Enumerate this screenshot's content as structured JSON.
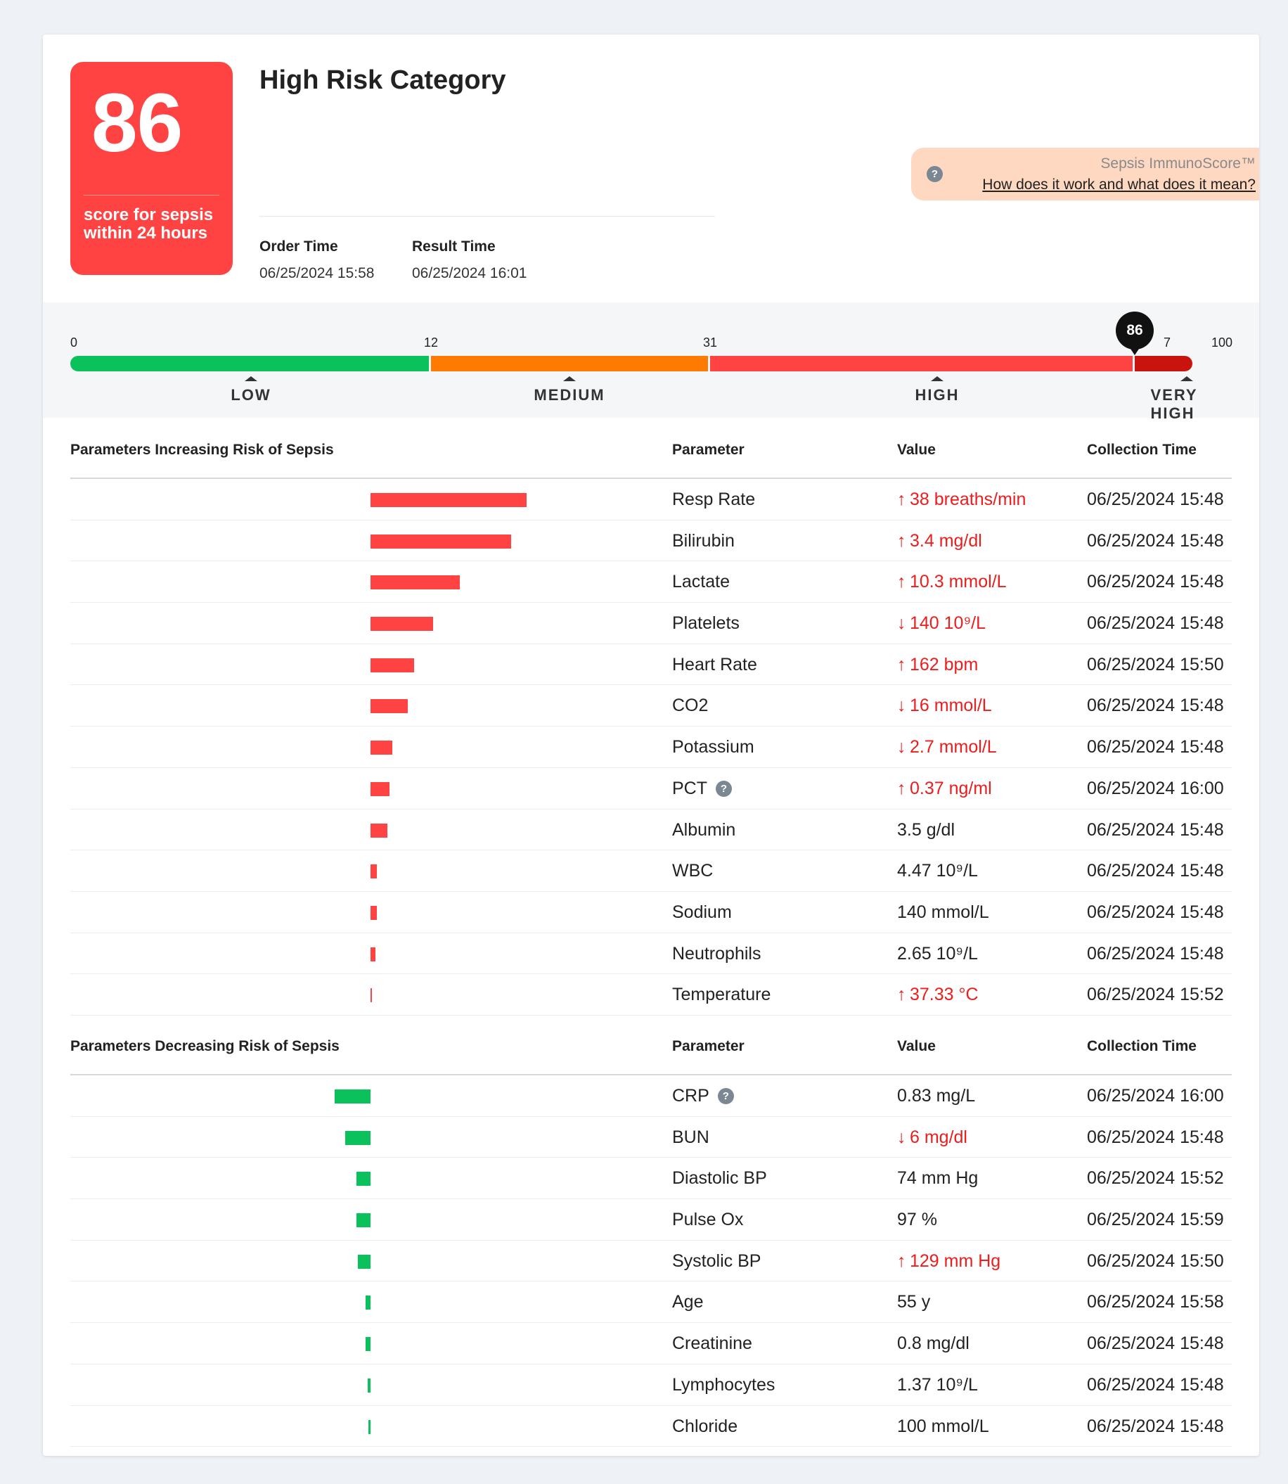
{
  "score": {
    "value": "86",
    "label": "score for sepsis within 24 hours",
    "color": "#ff4242"
  },
  "header": {
    "risk_category": "High Risk Category",
    "order_time_label": "Order Time",
    "order_time": "06/25/2024 15:58",
    "result_time_label": "Result Time",
    "result_time": "06/25/2024 16:01"
  },
  "info": {
    "title": "Sepsis ImmunoScore™",
    "link": "How does it work and what does it mean?"
  },
  "scale": {
    "ticks": [
      "0",
      "12",
      "31",
      "7",
      "100"
    ],
    "categories": [
      "LOW",
      "MEDIUM",
      "HIGH",
      "VERY HIGH"
    ],
    "marker_value": "86",
    "colors": {
      "low": "#0bc15c",
      "medium": "#ff7a00",
      "high": "#ff4242",
      "very_high": "#c9140e"
    }
  },
  "columns": {
    "parameter": "Parameter",
    "value": "Value",
    "collection_time": "Collection Time"
  },
  "increasing": {
    "title": "Parameters Increasing Risk of Sepsis",
    "bar_color": "#ff4242",
    "rows": [
      {
        "parameter": "Resp Rate",
        "value": "38 breaths/min",
        "trend": "up",
        "abnormal": true,
        "time": "06/25/2024 15:48",
        "contribution": 1.0
      },
      {
        "parameter": "Bilirubin",
        "value": "3.4 mg/dl",
        "trend": "up",
        "abnormal": true,
        "time": "06/25/2024 15:48",
        "contribution": 0.9
      },
      {
        "parameter": "Lactate",
        "value": "10.3 mmol/L",
        "trend": "up",
        "abnormal": true,
        "time": "06/25/2024 15:48",
        "contribution": 0.57
      },
      {
        "parameter": "Platelets",
        "value": "140 10⁹/L",
        "trend": "down",
        "abnormal": true,
        "time": "06/25/2024 15:48",
        "contribution": 0.4
      },
      {
        "parameter": "Heart Rate",
        "value": "162 bpm",
        "trend": "up",
        "abnormal": true,
        "time": "06/25/2024 15:50",
        "contribution": 0.28
      },
      {
        "parameter": "CO2",
        "value": "16 mmol/L",
        "trend": "down",
        "abnormal": true,
        "time": "06/25/2024 15:48",
        "contribution": 0.24
      },
      {
        "parameter": "Potassium",
        "value": "2.7 mmol/L",
        "trend": "down",
        "abnormal": true,
        "time": "06/25/2024 15:48",
        "contribution": 0.14
      },
      {
        "parameter": "PCT",
        "value": "0.37 ng/ml",
        "trend": "up",
        "abnormal": true,
        "time": "06/25/2024 16:00",
        "contribution": 0.12,
        "help": true
      },
      {
        "parameter": "Albumin",
        "value": "3.5 g/dl",
        "trend": "",
        "abnormal": false,
        "time": "06/25/2024 15:48",
        "contribution": 0.11
      },
      {
        "parameter": "WBC",
        "value": "4.47 10⁹/L",
        "trend": "",
        "abnormal": false,
        "time": "06/25/2024 15:48",
        "contribution": 0.04
      },
      {
        "parameter": "Sodium",
        "value": "140 mmol/L",
        "trend": "",
        "abnormal": false,
        "time": "06/25/2024 15:48",
        "contribution": 0.04
      },
      {
        "parameter": "Neutrophils",
        "value": "2.65 10⁹/L",
        "trend": "",
        "abnormal": false,
        "time": "06/25/2024 15:48",
        "contribution": 0.03
      },
      {
        "parameter": "Temperature",
        "value": "37.33 °C",
        "trend": "up",
        "abnormal": true,
        "time": "06/25/2024 15:52",
        "contribution": 0.01
      }
    ]
  },
  "decreasing": {
    "title": "Parameters Decreasing Risk of Sepsis",
    "bar_color": "#0bc15c",
    "rows": [
      {
        "parameter": "CRP",
        "value": "0.83 mg/L",
        "trend": "",
        "abnormal": false,
        "time": "06/25/2024 16:00",
        "contribution": 0.23,
        "help": true
      },
      {
        "parameter": "BUN",
        "value": "6 mg/dl",
        "trend": "down",
        "abnormal": true,
        "time": "06/25/2024 15:48",
        "contribution": 0.16
      },
      {
        "parameter": "Diastolic BP",
        "value": "74 mm Hg",
        "trend": "",
        "abnormal": false,
        "time": "06/25/2024 15:52",
        "contribution": 0.09
      },
      {
        "parameter": "Pulse Ox",
        "value": "97 %",
        "trend": "",
        "abnormal": false,
        "time": "06/25/2024 15:59",
        "contribution": 0.09
      },
      {
        "parameter": "Systolic BP",
        "value": "129 mm Hg",
        "trend": "up",
        "abnormal": true,
        "time": "06/25/2024 15:50",
        "contribution": 0.08
      },
      {
        "parameter": "Age",
        "value": "55 y",
        "trend": "",
        "abnormal": false,
        "time": "06/25/2024 15:58",
        "contribution": 0.03
      },
      {
        "parameter": "Creatinine",
        "value": "0.8 mg/dl",
        "trend": "",
        "abnormal": false,
        "time": "06/25/2024 15:48",
        "contribution": 0.03
      },
      {
        "parameter": "Lymphocytes",
        "value": "1.37 10⁹/L",
        "trend": "",
        "abnormal": false,
        "time": "06/25/2024 15:48",
        "contribution": 0.02
      },
      {
        "parameter": "Chloride",
        "value": "100 mmol/L",
        "trend": "",
        "abnormal": false,
        "time": "06/25/2024 15:48",
        "contribution": 0.015
      }
    ]
  }
}
